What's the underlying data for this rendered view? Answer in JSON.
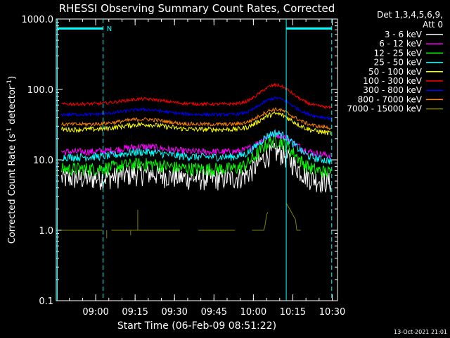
{
  "chart_data": {
    "type": "line",
    "title": "RHESSI Observing Summary Count Rates, Corrected",
    "xlabel": "Start Time (06-Feb-09 08:51:22)",
    "ylabel_main": "Corrected Count Rate (s",
    "ylabel_sup1": "-1",
    "ylabel_mid": " detector",
    "ylabel_sup2": "-1",
    "ylabel_end": ")",
    "y_scale": "log",
    "ylim": [
      0.1,
      1000
    ],
    "y_ticks": [
      {
        "value": 1000,
        "label": "1000.0"
      },
      {
        "value": 100,
        "label": "100.0"
      },
      {
        "value": 10,
        "label": "10.0"
      },
      {
        "value": 1,
        "label": "1.0"
      },
      {
        "value": 0.1,
        "label": "0.1"
      }
    ],
    "x_range_minutes": [
      45,
      152
    ],
    "x_ticks": [
      {
        "minutes": 60,
        "label": "09:00"
      },
      {
        "minutes": 75,
        "label": "09:15"
      },
      {
        "minutes": 90,
        "label": "09:30"
      },
      {
        "minutes": 105,
        "label": "09:45"
      },
      {
        "minutes": 120,
        "label": "10:00"
      },
      {
        "minutes": 135,
        "label": "10:15"
      },
      {
        "minutes": 150,
        "label": "10:30"
      }
    ],
    "legend_header": [
      "Det 1,3,4,5,6,9,",
      "Att 0"
    ],
    "legend_placement": "top-right, outside plot",
    "series": [
      {
        "name": "3 - 6 keV",
        "color": "#ffffff",
        "base": 5.5,
        "peak": 13,
        "noise": 0.35
      },
      {
        "name": "6 - 12 keV",
        "color": "#ff00ff",
        "base": 13,
        "peak": 23,
        "noise": 0.12
      },
      {
        "name": "12 - 25 keV",
        "color": "#00ff00",
        "base": 7.5,
        "peak": 19,
        "noise": 0.22
      },
      {
        "name": "25 - 50 keV",
        "color": "#00ffff",
        "base": 11,
        "peak": 24,
        "noise": 0.13
      },
      {
        "name": "50 - 100 keV",
        "color": "#ffff00",
        "base": 27,
        "peak": 45,
        "noise": 0.08
      },
      {
        "name": "100 - 300 keV",
        "color": "#ff0000",
        "base": 62,
        "peak": 115,
        "noise": 0.05
      },
      {
        "name": "300 - 800 keV",
        "color": "#0000ff",
        "base": 44,
        "peak": 75,
        "noise": 0.05
      },
      {
        "name": "800 - 7000 keV",
        "color": "#ff8000",
        "base": 32,
        "peak": 52,
        "noise": 0.06
      },
      {
        "name": "7000 - 15000 keV",
        "color": "#808000",
        "base": 1,
        "peak": 2.8,
        "noise": 0
      }
    ],
    "time_markers": [
      {
        "minutes": 45.4,
        "style": "solid",
        "color": "#00ffff"
      },
      {
        "minutes": 62.8,
        "style": "dashed",
        "color": "#00ffff"
      },
      {
        "minutes": 132.5,
        "style": "solid",
        "color": "#00ffff"
      },
      {
        "minutes": 149.8,
        "style": "dashed",
        "color": "#00ffff"
      }
    ],
    "night_bars": [
      {
        "from": 45.4,
        "to": 62.8
      },
      {
        "from": 132.5,
        "to": 149.8
      }
    ],
    "flag_label": "N",
    "timestamp": "13-Oct-2021 21:01"
  }
}
